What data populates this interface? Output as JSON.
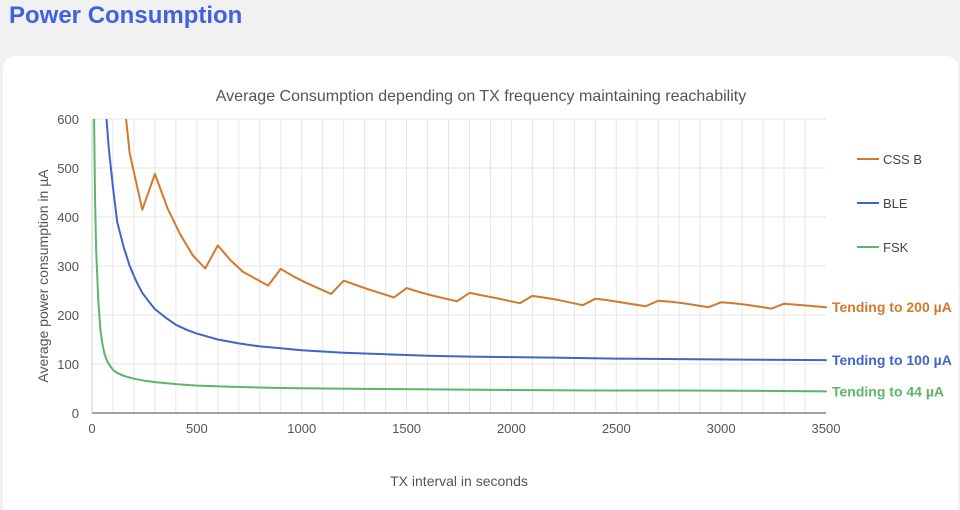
{
  "page": {
    "heading": "Power Consumption"
  },
  "chart_data": {
    "type": "line",
    "title": "Average Consumption depending on TX frequency maintaining reachability",
    "xlabel": "TX interval in seconds",
    "ylabel": "Average power consumption in µA",
    "xlim": [
      0,
      3500
    ],
    "ylim": [
      0,
      600
    ],
    "xticks": [
      0,
      500,
      1000,
      1500,
      2000,
      2500,
      3000,
      3500
    ],
    "yticks": [
      0,
      100,
      200,
      300,
      400,
      500,
      600
    ],
    "grid": true,
    "legend_position": "right",
    "series": [
      {
        "name": "CSS B",
        "color": "#d17a2f",
        "points": [
          [
            150,
            650
          ],
          [
            180,
            530
          ],
          [
            240,
            415
          ],
          [
            300,
            488
          ],
          [
            360,
            418
          ],
          [
            420,
            365
          ],
          [
            480,
            322
          ],
          [
            540,
            295
          ],
          [
            600,
            342
          ],
          [
            660,
            312
          ],
          [
            720,
            288
          ],
          [
            840,
            260
          ],
          [
            900,
            294
          ],
          [
            960,
            279
          ],
          [
            1020,
            266
          ],
          [
            1140,
            243
          ],
          [
            1200,
            270
          ],
          [
            1260,
            261
          ],
          [
            1320,
            252
          ],
          [
            1440,
            236
          ],
          [
            1500,
            255
          ],
          [
            1560,
            247
          ],
          [
            1620,
            240
          ],
          [
            1740,
            228
          ],
          [
            1800,
            245
          ],
          [
            1860,
            240
          ],
          [
            1920,
            235
          ],
          [
            2040,
            224
          ],
          [
            2100,
            239
          ],
          [
            2160,
            235
          ],
          [
            2220,
            231
          ],
          [
            2340,
            220
          ],
          [
            2400,
            233
          ],
          [
            2460,
            230
          ],
          [
            2520,
            226
          ],
          [
            2640,
            218
          ],
          [
            2700,
            229
          ],
          [
            2760,
            227
          ],
          [
            2820,
            224
          ],
          [
            2940,
            216
          ],
          [
            3000,
            226
          ],
          [
            3060,
            224
          ],
          [
            3120,
            221
          ],
          [
            3240,
            213
          ],
          [
            3300,
            223
          ],
          [
            3360,
            221
          ],
          [
            3420,
            219
          ],
          [
            3500,
            216
          ]
        ]
      },
      {
        "name": "BLE",
        "color": "#4064c8",
        "points": [
          [
            60,
            650
          ],
          [
            80,
            540
          ],
          [
            100,
            460
          ],
          [
            120,
            390
          ],
          [
            150,
            340
          ],
          [
            180,
            300
          ],
          [
            210,
            270
          ],
          [
            240,
            245
          ],
          [
            270,
            228
          ],
          [
            300,
            212
          ],
          [
            350,
            195
          ],
          [
            400,
            180
          ],
          [
            450,
            170
          ],
          [
            500,
            162
          ],
          [
            600,
            150
          ],
          [
            700,
            142
          ],
          [
            800,
            136
          ],
          [
            900,
            132
          ],
          [
            1000,
            128
          ],
          [
            1200,
            123
          ],
          [
            1400,
            120
          ],
          [
            1600,
            117
          ],
          [
            1800,
            115
          ],
          [
            2000,
            114
          ],
          [
            2200,
            113
          ],
          [
            2500,
            111
          ],
          [
            2800,
            110
          ],
          [
            3100,
            109
          ],
          [
            3500,
            108
          ]
        ]
      },
      {
        "name": "FSK",
        "color": "#5cb56a",
        "points": [
          [
            10,
            600
          ],
          [
            15,
            430
          ],
          [
            20,
            330
          ],
          [
            30,
            230
          ],
          [
            40,
            170
          ],
          [
            50,
            140
          ],
          [
            60,
            120
          ],
          [
            70,
            108
          ],
          [
            80,
            100
          ],
          [
            100,
            88
          ],
          [
            120,
            82
          ],
          [
            150,
            76
          ],
          [
            200,
            70
          ],
          [
            250,
            66
          ],
          [
            300,
            63
          ],
          [
            400,
            59
          ],
          [
            500,
            56
          ],
          [
            700,
            53
          ],
          [
            900,
            51
          ],
          [
            1100,
            50
          ],
          [
            1400,
            49
          ],
          [
            1700,
            48
          ],
          [
            2000,
            47
          ],
          [
            2400,
            46
          ],
          [
            2800,
            46
          ],
          [
            3200,
            45
          ],
          [
            3500,
            44
          ]
        ]
      }
    ],
    "annotations": [
      {
        "text": "Tending to 200 µA",
        "y": 216,
        "color": "#d17a2f"
      },
      {
        "text": "Tending to 100 µA",
        "y": 108,
        "color": "#4064c8"
      },
      {
        "text": "Tending to 44 µA",
        "y": 44,
        "color": "#5cb56a"
      }
    ]
  }
}
